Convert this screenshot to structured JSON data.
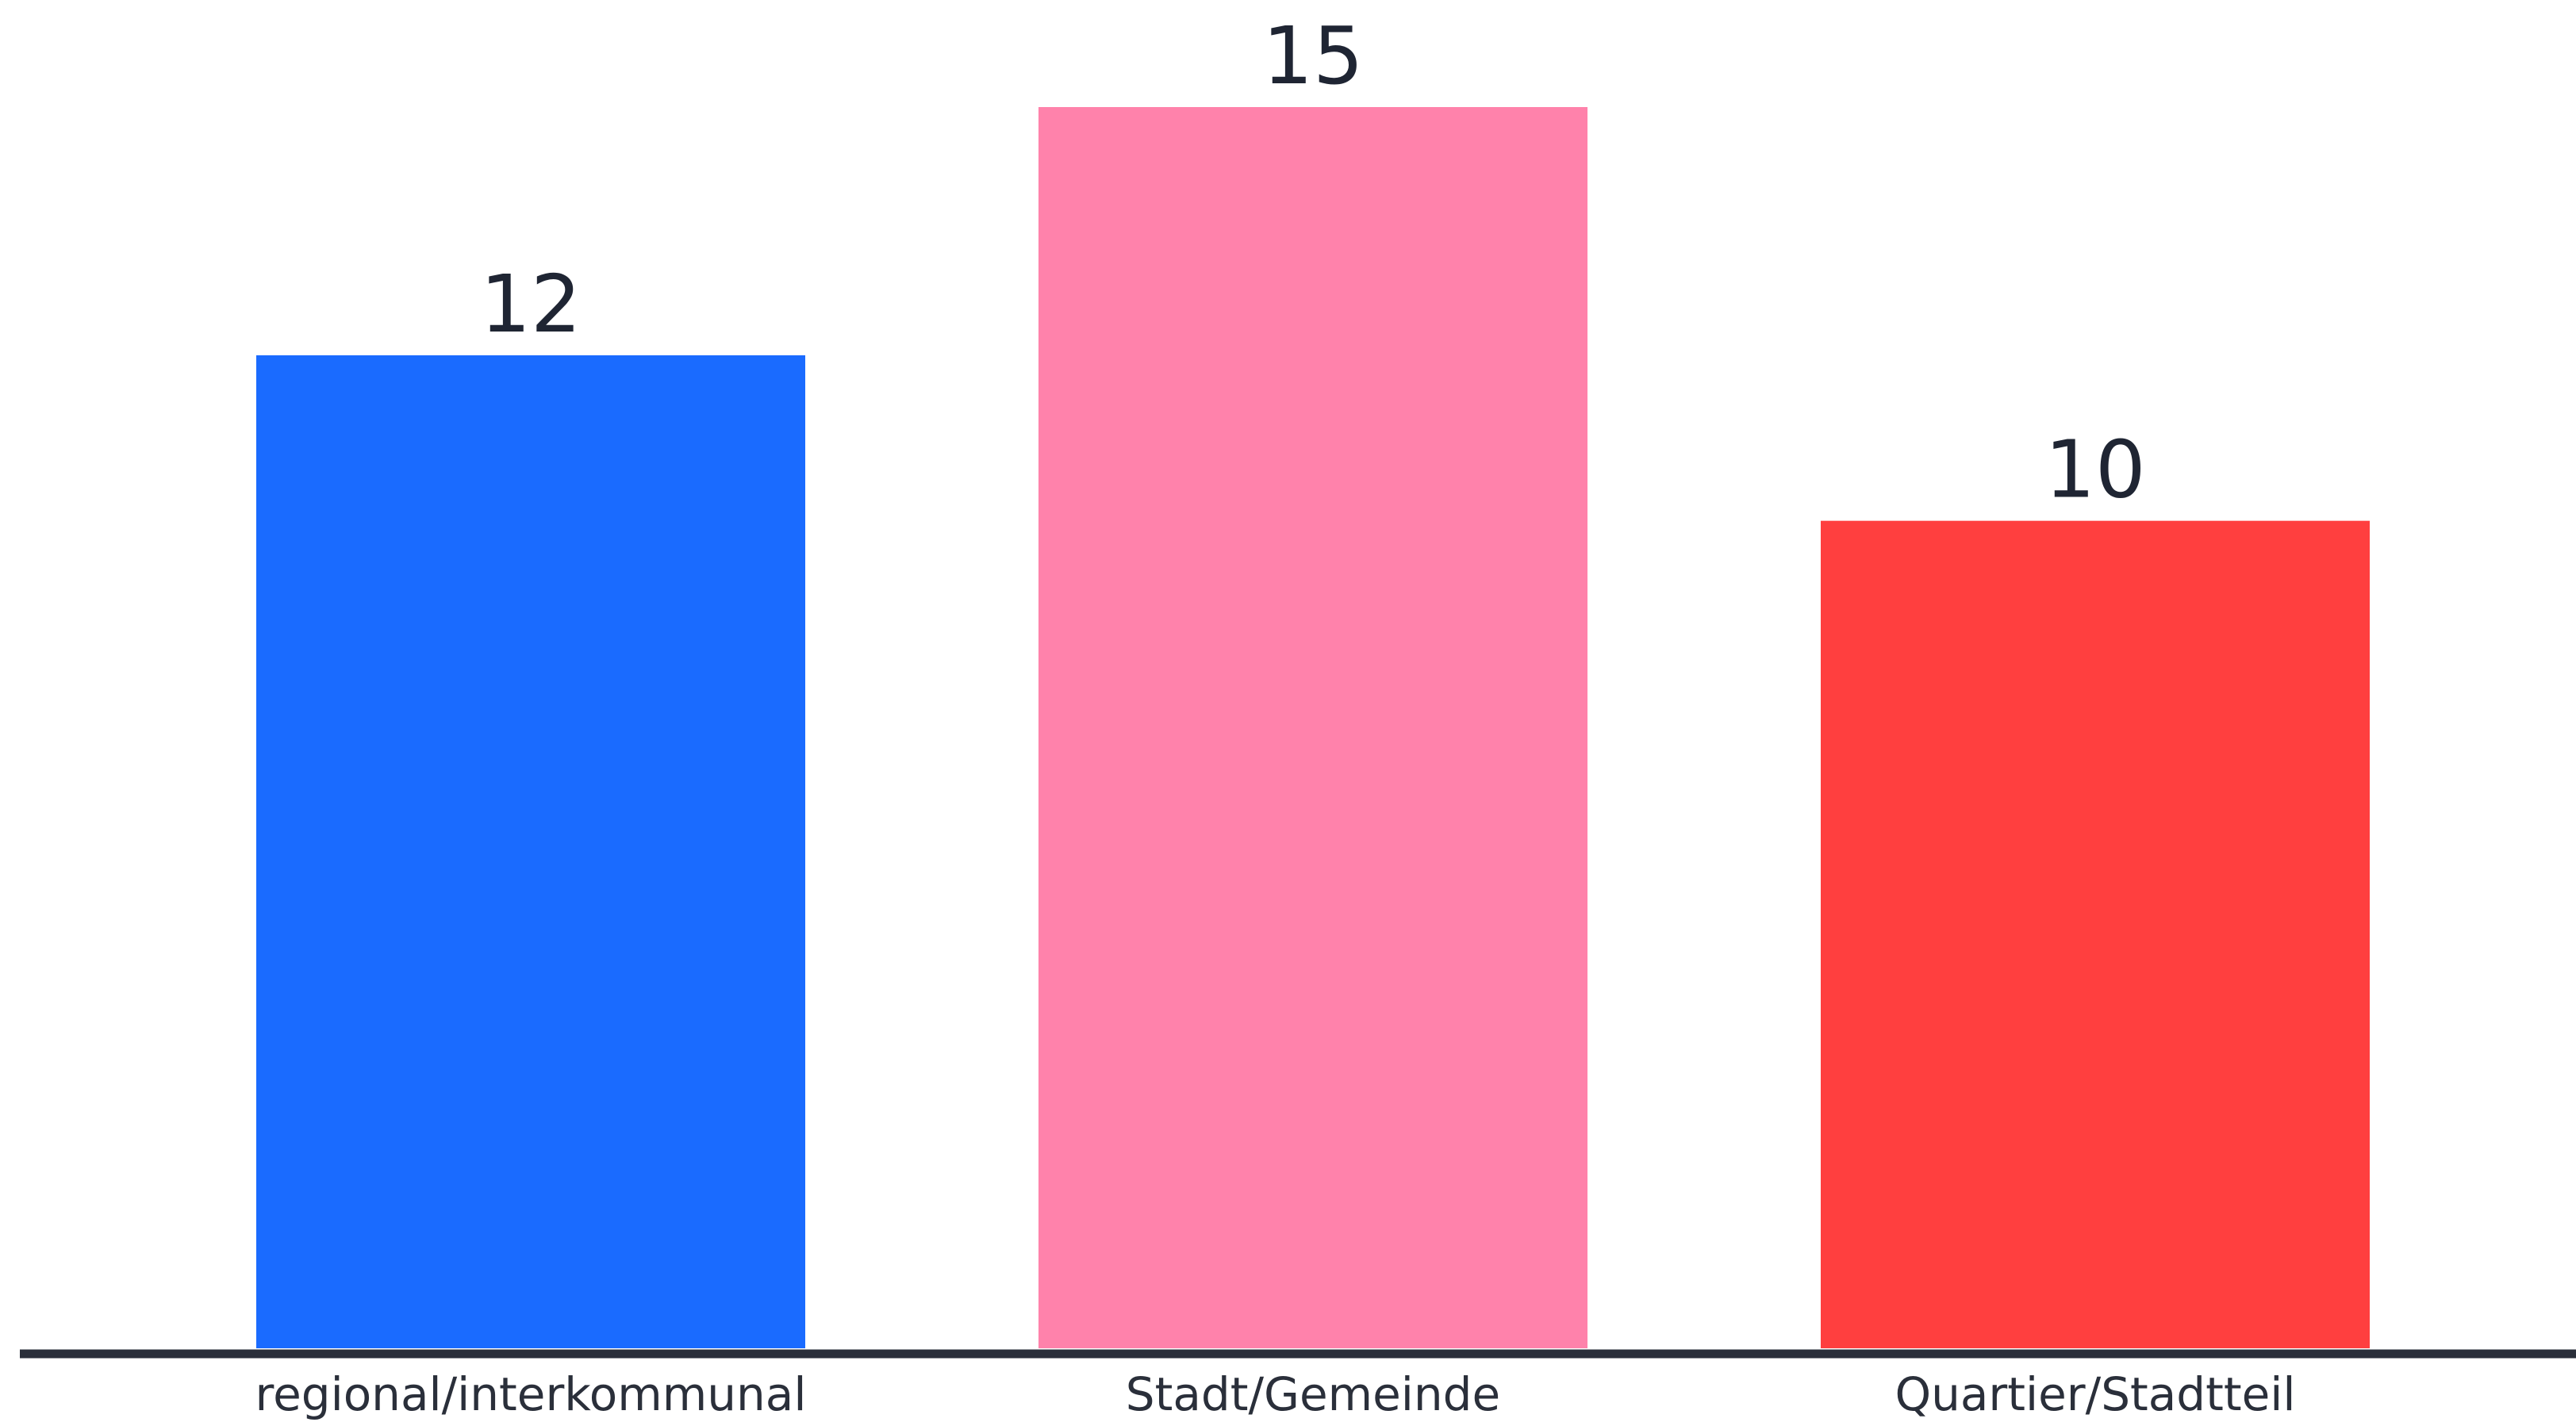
{
  "chart_data": {
    "type": "bar",
    "categories": [
      "regional/interkommunal",
      "Stadt/Gemeinde",
      "Quartier/Stadtteil"
    ],
    "values": [
      12,
      15,
      10
    ],
    "colors": [
      "#1a6bff",
      "#ff82ab",
      "#ff3f3f"
    ],
    "axis_color": "#2a2f3a",
    "ylim": [
      0,
      15
    ],
    "grid": false,
    "legend": "none",
    "data_labels": [
      "12",
      "15",
      "10"
    ]
  }
}
